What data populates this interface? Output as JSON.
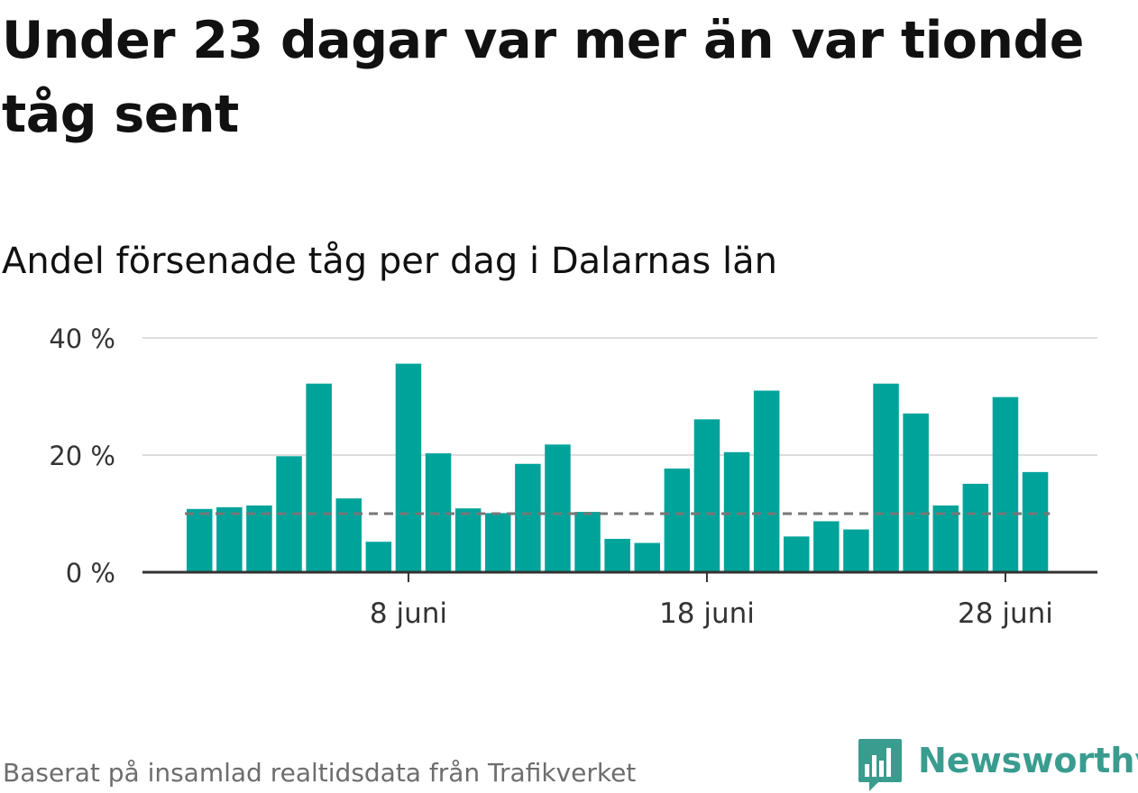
{
  "headline": "Under 23 dagar var mer än var tionde tåg sent",
  "subtitle": "Andel försenade tåg per dag i Dalarnas län",
  "source": "Baserat på insamlad realtidsdata från Trafikverket",
  "logo": {
    "name": "Newsworthy",
    "icon": "newsworthy-bar-chart-icon"
  },
  "colors": {
    "bar": "#00a39a",
    "reference_line": "#777777",
    "grid": "#dddddd",
    "axis": "#333333",
    "brand": "#3a9c8f"
  },
  "chart_data": {
    "type": "bar",
    "x_start_day": 1,
    "x_month_label": "juni",
    "x_ticks": [
      {
        "day": 8,
        "label": "8 juni"
      },
      {
        "day": 18,
        "label": "18 juni"
      },
      {
        "day": 28,
        "label": "28 juni"
      }
    ],
    "y_ticks": [
      {
        "value": 0,
        "label": "0 %"
      },
      {
        "value": 20,
        "label": "20 %"
      },
      {
        "value": 40,
        "label": "40 %"
      }
    ],
    "ylim": [
      0,
      40
    ],
    "grid": true,
    "reference_line": 10,
    "values": [
      10.8,
      11.1,
      11.4,
      19.8,
      32.2,
      12.6,
      5.2,
      35.6,
      20.3,
      10.9,
      10.1,
      18.5,
      21.8,
      10.3,
      5.7,
      5.0,
      17.7,
      26.1,
      20.5,
      31.0,
      6.1,
      8.7,
      7.3,
      32.2,
      27.1,
      11.4,
      15.1,
      29.9,
      17.1
    ]
  }
}
